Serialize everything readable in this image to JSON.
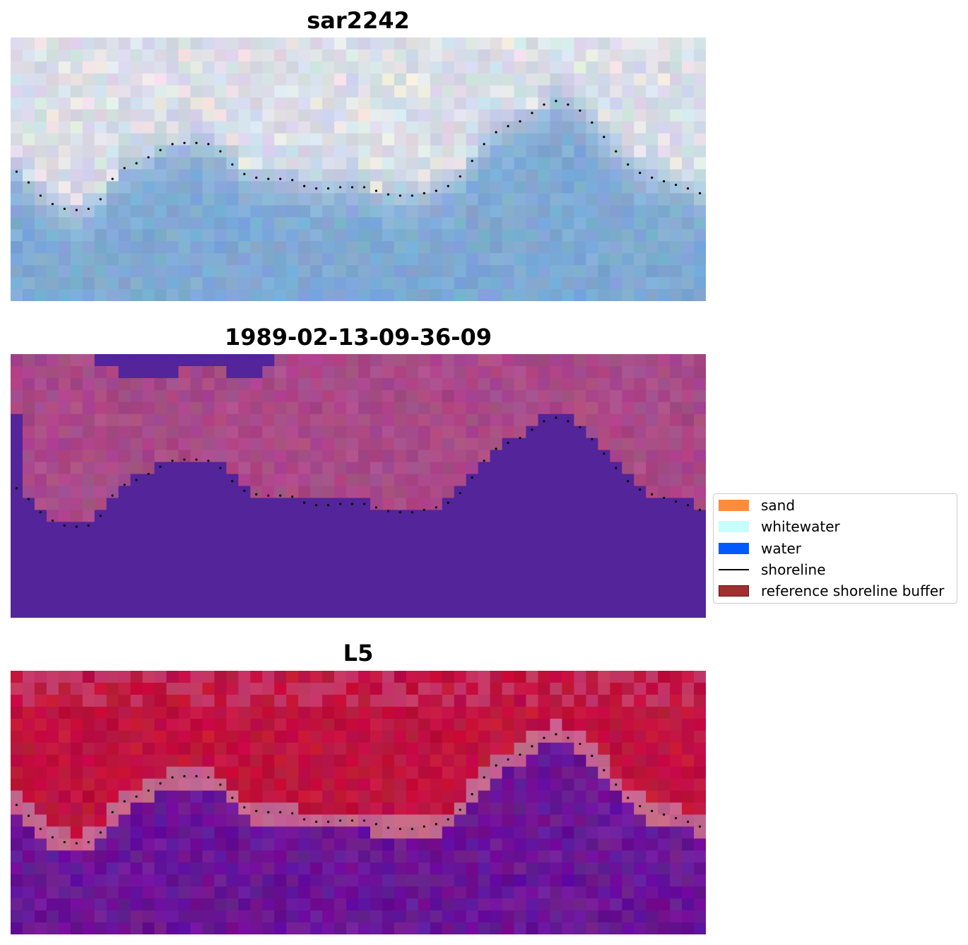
{
  "panels": [
    {
      "title": "sar2242",
      "style": "sar"
    },
    {
      "title": "1989-02-13-09-36-09",
      "style": "classified"
    },
    {
      "title": "L5",
      "style": "prob"
    }
  ],
  "legend": {
    "items": [
      {
        "label": "sand",
        "type": "patch",
        "color": "#ff8c3a"
      },
      {
        "label": "whitewater",
        "type": "patch",
        "color": "#c8fdfd"
      },
      {
        "label": "water",
        "type": "patch",
        "color": "#005aff"
      },
      {
        "label": "shoreline",
        "type": "line",
        "color": "#000000"
      },
      {
        "label": "reference shoreline buffer",
        "type": "patch",
        "color": "#a0302f",
        "edge": "#6e1010"
      }
    ]
  },
  "colors": {
    "water_mask": "#53249a",
    "land_mask": "#a94a88",
    "prob_land": "#c0133e",
    "prob_water": "#6a1696",
    "sar_water": "#7ea9d3",
    "sar_land": "#d6dbe6"
  },
  "chart_data": {
    "type": "heatmap",
    "grid": false,
    "axes_visible": false,
    "image_grid": {
      "columns": 58,
      "rows": 22
    },
    "shoreline_points": [
      [
        0.5,
        11.2
      ],
      [
        1.5,
        12.1
      ],
      [
        2.5,
        13.2
      ],
      [
        3.5,
        13.9
      ],
      [
        4.5,
        14.3
      ],
      [
        5.5,
        14.4
      ],
      [
        6.5,
        14.3
      ],
      [
        7.5,
        13.5
      ],
      [
        8.5,
        11.8
      ],
      [
        9.5,
        10.9
      ],
      [
        10.5,
        10.5
      ],
      [
        11.5,
        10.0
      ],
      [
        12.5,
        9.4
      ],
      [
        13.5,
        8.9
      ],
      [
        14.5,
        8.8
      ],
      [
        15.5,
        8.8
      ],
      [
        16.5,
        8.9
      ],
      [
        17.5,
        9.5
      ],
      [
        18.5,
        10.6
      ],
      [
        19.5,
        11.4
      ],
      [
        20.5,
        11.7
      ],
      [
        21.5,
        11.8
      ],
      [
        22.5,
        11.8
      ],
      [
        23.5,
        11.9
      ],
      [
        24.5,
        12.4
      ],
      [
        25.5,
        12.6
      ],
      [
        26.5,
        12.6
      ],
      [
        27.5,
        12.5
      ],
      [
        28.5,
        12.5
      ],
      [
        29.5,
        12.5
      ],
      [
        30.5,
        12.8
      ],
      [
        31.5,
        13.1
      ],
      [
        32.5,
        13.2
      ],
      [
        33.5,
        13.2
      ],
      [
        34.5,
        13.0
      ],
      [
        35.5,
        12.8
      ],
      [
        36.5,
        12.4
      ],
      [
        37.5,
        11.6
      ],
      [
        38.5,
        10.3
      ],
      [
        39.5,
        8.9
      ],
      [
        40.5,
        7.9
      ],
      [
        41.5,
        7.4
      ],
      [
        42.5,
        7.0
      ],
      [
        43.5,
        6.3
      ],
      [
        44.5,
        5.6
      ],
      [
        45.5,
        5.3
      ],
      [
        46.5,
        5.6
      ],
      [
        47.5,
        6.1
      ],
      [
        48.5,
        7.1
      ],
      [
        49.5,
        8.3
      ],
      [
        50.5,
        9.5
      ],
      [
        51.5,
        10.6
      ],
      [
        52.5,
        11.3
      ],
      [
        53.5,
        11.7
      ],
      [
        54.5,
        12.0
      ],
      [
        55.5,
        12.3
      ],
      [
        56.5,
        12.6
      ],
      [
        57.5,
        13.0
      ]
    ],
    "upper_water_patch": [
      {
        "x": [
          7,
          22
        ],
        "y": [
          0,
          1
        ]
      },
      {
        "x": [
          9,
          14
        ],
        "y": [
          1,
          2
        ]
      },
      {
        "x": [
          18,
          21
        ],
        "y": [
          1,
          2
        ]
      }
    ]
  }
}
